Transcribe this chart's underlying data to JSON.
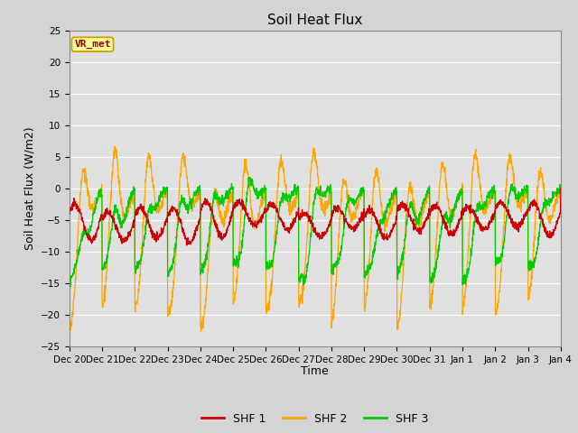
{
  "title": "Soil Heat Flux",
  "ylabel": "Soil Heat Flux (W/m2)",
  "xlabel": "Time",
  "ylim": [
    -25,
    25
  ],
  "yticks": [
    -25,
    -20,
    -15,
    -10,
    -5,
    0,
    5,
    10,
    15,
    20,
    25
  ],
  "xtick_labels": [
    "Dec 20",
    "Dec 21",
    "Dec 22",
    "Dec 23",
    "Dec 24",
    "Dec 25",
    "Dec 26",
    "Dec 27",
    "Dec 28",
    "Dec 29",
    "Dec 30",
    "Dec 31",
    "Jan 1",
    "Jan 2",
    "Jan 3",
    "Jan 4"
  ],
  "shf1_color": "#cc0000",
  "shf2_color": "#ffa500",
  "shf3_color": "#00cc00",
  "fig_bg_color": "#d4d4d4",
  "plot_bg_color": "#e0e0e0",
  "legend_label1": "SHF 1",
  "legend_label2": "SHF 2",
  "legend_label3": "SHF 3",
  "annotation_text": "VR_met",
  "annotation_bg": "#ffff99",
  "annotation_border": "#cc9900",
  "title_fontsize": 11,
  "axis_label_fontsize": 9,
  "tick_fontsize": 7.5,
  "n_days": 15,
  "pts_per_day": 144
}
